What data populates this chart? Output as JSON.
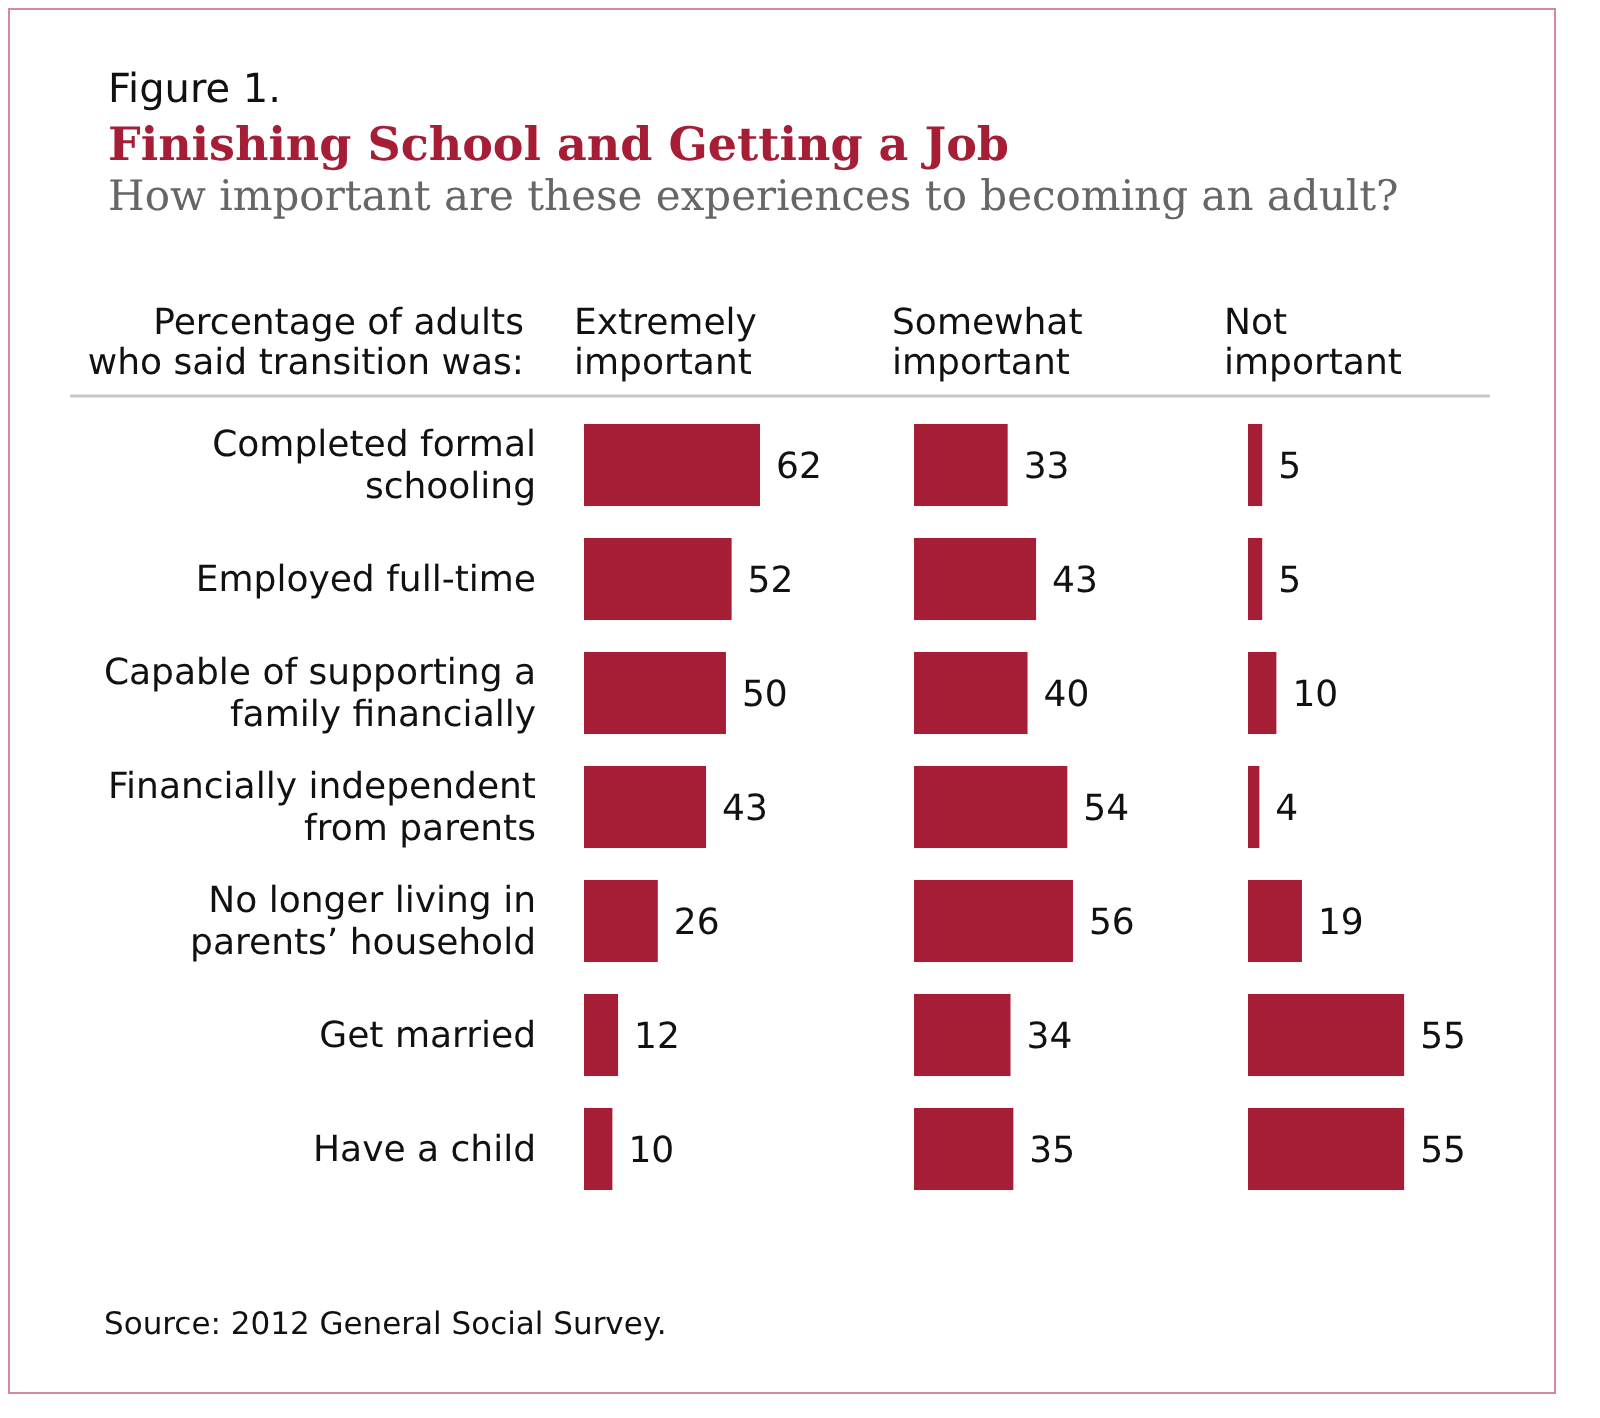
{
  "chart_data": [
    {
      "type": "other",
      "title": "Finishing School and Getting a Job",
      "subtitle": "How important are these experiences to becoming an adult?",
      "annotations": [
        "Figure 1.",
        "Source: 2012 General Social Survey."
      ]
    },
    {
      "type": "bar",
      "orientation": "horizontal",
      "title": "Extremely important",
      "ylabel": "Percentage of adults who said transition was:",
      "categories": [
        "Completed formal schooling",
        "Employed full-time",
        "Capable of supporting a family financially",
        "Financially independent from parents",
        "No longer living in parents’ household",
        "Get married",
        "Have a child"
      ],
      "values": [
        62,
        52,
        50,
        43,
        26,
        12,
        10
      ],
      "color": "#a51e36",
      "data_labels": true
    },
    {
      "type": "bar",
      "orientation": "horizontal",
      "title": "Somewhat important",
      "categories": [
        "Completed formal schooling",
        "Employed full-time",
        "Capable of supporting a family financially",
        "Financially independent from parents",
        "No longer living in parents’ household",
        "Get married",
        "Have a child"
      ],
      "values": [
        33,
        43,
        40,
        54,
        56,
        34,
        35
      ],
      "color": "#a51e36",
      "data_labels": true,
      "tick_labels": false
    },
    {
      "type": "bar",
      "orientation": "horizontal",
      "title": "Not important",
      "categories": [
        "Completed formal schooling",
        "Employed full-time",
        "Capable of supporting a family financially",
        "Financially independent from parents",
        "No longer living in parents’ household",
        "Get married",
        "Have a child"
      ],
      "values": [
        5,
        5,
        10,
        4,
        19,
        55,
        55
      ],
      "color": "#a51e36",
      "data_labels": true,
      "tick_labels": false
    }
  ]
}
